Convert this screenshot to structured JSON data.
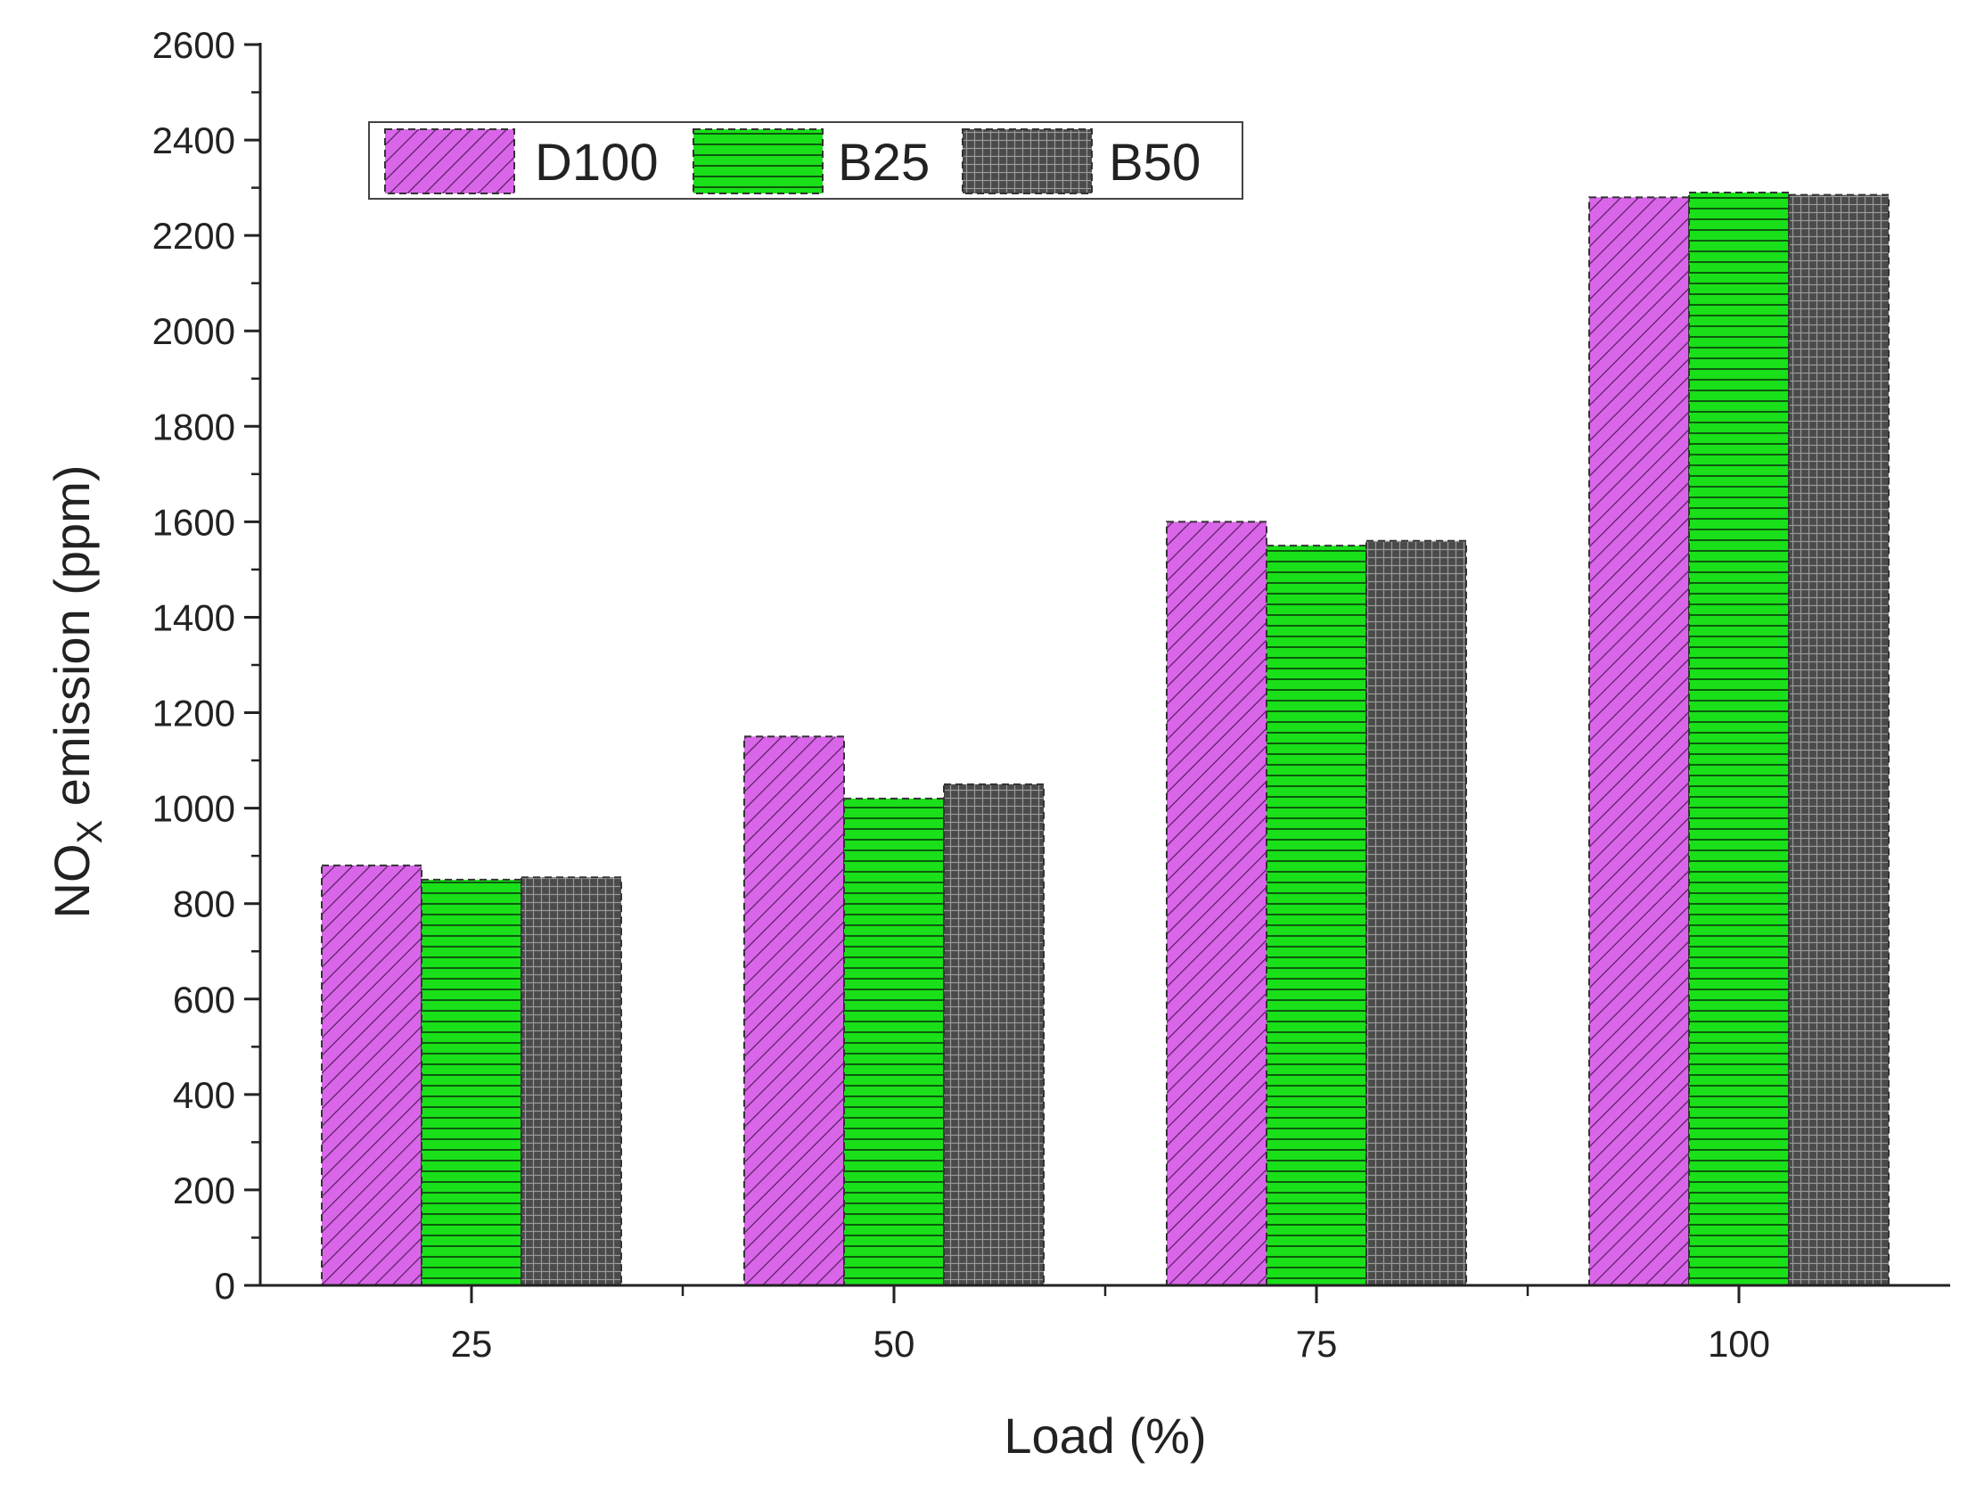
{
  "chart_data": {
    "type": "bar",
    "xlabel": "Load (%)",
    "ylabel": {
      "main": "NO",
      "subscript": "X",
      "rest": " emission (ppm)"
    },
    "categories": [
      "25",
      "50",
      "75",
      "100"
    ],
    "ylim": [
      0,
      2600
    ],
    "yticks": [
      0,
      200,
      400,
      600,
      800,
      1000,
      1200,
      1400,
      1600,
      1800,
      2000,
      2200,
      2400,
      2600
    ],
    "grid": false,
    "legend_position": "top-left",
    "series": [
      {
        "name": "D100",
        "values": [
          880,
          1150,
          1600,
          2280
        ],
        "color": "#d966e8",
        "pattern": "diagonal-hatch"
      },
      {
        "name": "B25",
        "values": [
          850,
          1020,
          1550,
          2290
        ],
        "color": "#19e019",
        "pattern": "horizontal-lines"
      },
      {
        "name": "B50",
        "values": [
          855,
          1050,
          1560,
          2285
        ],
        "color": "#4a4a4a",
        "pattern": "grid"
      }
    ]
  }
}
